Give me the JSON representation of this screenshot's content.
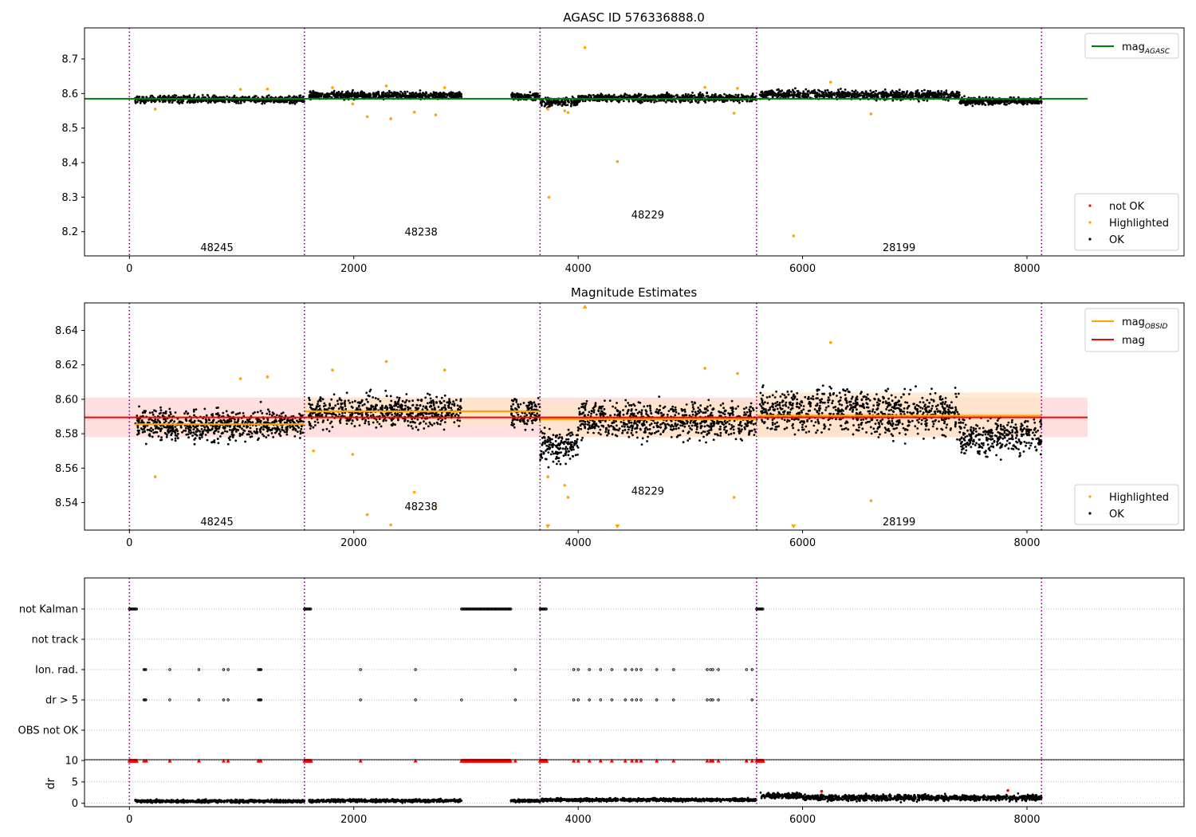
{
  "figure_title": "AGASC ID 576336888.0",
  "chart_data": [
    {
      "type": "scatter",
      "title": "AGASC ID 576336888.0",
      "xlabel": "",
      "ylabel": "",
      "xlim": [
        -400,
        9400
      ],
      "ylim": [
        8.13,
        8.79
      ],
      "xticks": [
        0,
        2000,
        4000,
        6000,
        8000
      ],
      "yticks": [
        8.2,
        8.3,
        8.4,
        8.5,
        8.6,
        8.7
      ],
      "ytick_labels": [
        "8.2",
        "8.3",
        "8.4",
        "8.5",
        "8.6",
        "8.7"
      ],
      "obsid_boundaries": [
        0,
        1560,
        3660,
        5590,
        8130
      ],
      "obsid_labels": [
        {
          "text": "48245",
          "x": 780,
          "y": 8.155
        },
        {
          "text": "48238",
          "x": 2600,
          "y": 8.2
        },
        {
          "text": "48229",
          "x": 4620,
          "y": 8.25
        },
        {
          "text": "28199",
          "x": 6860,
          "y": 8.155
        }
      ],
      "line_series": [
        {
          "name": "mag_AGASC",
          "color": "#008000",
          "y": 8.585,
          "x": [
            -400,
            8540
          ]
        }
      ],
      "legend_lines": {
        "entries": [
          {
            "base": "mag",
            "sub": "AGASC",
            "color": "#008000"
          }
        ],
        "position": "upper right"
      },
      "legend_points": {
        "entries": [
          {
            "label": "not OK",
            "color": "#ff0000"
          },
          {
            "label": "Highlighted",
            "color": "#ffa500"
          },
          {
            "label": "OK",
            "color": "#000000"
          }
        ],
        "position": "lower right"
      },
      "segments": [
        {
          "x0": 50,
          "x1": 1560,
          "base": 8.583,
          "spread": 0.009
        },
        {
          "x0": 1600,
          "x1": 2960,
          "base": 8.595,
          "spread": 0.009
        },
        {
          "x0": 3400,
          "x1": 3660,
          "base": 8.592,
          "spread": 0.009
        },
        {
          "x0": 3660,
          "x1": 4000,
          "base": 8.575,
          "spread": 0.012
        },
        {
          "x0": 4000,
          "x1": 5590,
          "base": 8.587,
          "spread": 0.01
        },
        {
          "x0": 5620,
          "x1": 6500,
          "base": 8.597,
          "spread": 0.011
        },
        {
          "x0": 6500,
          "x1": 7400,
          "base": 8.595,
          "spread": 0.012
        },
        {
          "x0": 7400,
          "x1": 8130,
          "base": 8.578,
          "spread": 0.009
        }
      ],
      "highlighted": [
        {
          "x": 230,
          "y": 8.555
        },
        {
          "x": 990,
          "y": 8.612
        },
        {
          "x": 1230,
          "y": 8.613
        },
        {
          "x": 1810,
          "y": 8.617
        },
        {
          "x": 1990,
          "y": 8.57
        },
        {
          "x": 2120,
          "y": 8.533
        },
        {
          "x": 2290,
          "y": 8.622
        },
        {
          "x": 2330,
          "y": 8.527
        },
        {
          "x": 2540,
          "y": 8.546
        },
        {
          "x": 2730,
          "y": 8.538
        },
        {
          "x": 2810,
          "y": 8.617
        },
        {
          "x": 3730,
          "y": 8.555
        },
        {
          "x": 3740,
          "y": 8.3
        },
        {
          "x": 3880,
          "y": 8.55
        },
        {
          "x": 3910,
          "y": 8.545
        },
        {
          "x": 4060,
          "y": 8.733
        },
        {
          "x": 4350,
          "y": 8.403
        },
        {
          "x": 5130,
          "y": 8.618
        },
        {
          "x": 5390,
          "y": 8.543
        },
        {
          "x": 5420,
          "y": 8.615
        },
        {
          "x": 5920,
          "y": 8.188
        },
        {
          "x": 6250,
          "y": 8.633
        },
        {
          "x": 6610,
          "y": 8.541
        }
      ]
    },
    {
      "type": "scatter",
      "title": "Magnitude Estimates",
      "xlabel": "",
      "ylabel": "",
      "xlim": [
        -400,
        9400
      ],
      "ylim": [
        8.524,
        8.656
      ],
      "xticks": [
        0,
        2000,
        4000,
        6000,
        8000
      ],
      "yticks": [
        8.54,
        8.56,
        8.58,
        8.6,
        8.62,
        8.64
      ],
      "ytick_labels": [
        "8.54",
        "8.56",
        "8.58",
        "8.60",
        "8.62",
        "8.64"
      ],
      "obsid_boundaries": [
        0,
        1560,
        3660,
        5590,
        8130
      ],
      "obsid_labels": [
        {
          "text": "48245",
          "x": 780,
          "y": 8.529
        },
        {
          "text": "48238",
          "x": 2600,
          "y": 8.538
        },
        {
          "text": "48229",
          "x": 4620,
          "y": 8.547
        },
        {
          "text": "28199",
          "x": 6860,
          "y": 8.529
        }
      ],
      "mag_line": {
        "name": "mag",
        "color": "#ff0000",
        "y": 8.5895,
        "band": [
          8.578,
          8.601
        ],
        "x": [
          -400,
          8540
        ]
      },
      "mag_obsid": [
        {
          "x0": 50,
          "x1": 1560,
          "y": 8.5855,
          "band": [
            8.58,
            8.591
          ]
        },
        {
          "x0": 1560,
          "x1": 3660,
          "y": 8.593,
          "band": [
            8.585,
            8.601
          ]
        },
        {
          "x0": 3660,
          "x1": 5590,
          "y": 8.5885,
          "band": [
            8.578,
            8.599
          ]
        },
        {
          "x0": 5590,
          "x1": 8130,
          "y": 8.5905,
          "band": [
            8.578,
            8.604
          ]
        }
      ],
      "legend_lines": {
        "entries": [
          {
            "base": "mag",
            "sub": "OBSID",
            "color": "#ffa500"
          },
          {
            "base": "mag",
            "sub": "",
            "color": "#ff0000"
          }
        ],
        "position": "upper right"
      },
      "legend_points": {
        "entries": [
          {
            "label": "Highlighted",
            "color": "#ffa500"
          },
          {
            "label": "OK",
            "color": "#000000"
          }
        ],
        "position": "lower right"
      },
      "segments": [
        {
          "x0": 50,
          "x1": 1560,
          "base": 8.585,
          "spread": 0.008
        },
        {
          "x0": 1600,
          "x1": 2960,
          "base": 8.593,
          "spread": 0.008
        },
        {
          "x0": 3400,
          "x1": 3660,
          "base": 8.592,
          "spread": 0.008
        },
        {
          "x0": 3660,
          "x1": 4000,
          "base": 8.573,
          "spread": 0.009
        },
        {
          "x0": 4000,
          "x1": 5590,
          "base": 8.588,
          "spread": 0.009
        },
        {
          "x0": 5620,
          "x1": 6500,
          "base": 8.594,
          "spread": 0.012
        },
        {
          "x0": 6500,
          "x1": 7400,
          "base": 8.592,
          "spread": 0.012
        },
        {
          "x0": 7400,
          "x1": 8130,
          "base": 8.578,
          "spread": 0.009
        }
      ],
      "highlighted": [
        {
          "x": 230,
          "y": 8.555
        },
        {
          "x": 990,
          "y": 8.612
        },
        {
          "x": 1230,
          "y": 8.613
        },
        {
          "x": 1640,
          "y": 8.57
        },
        {
          "x": 1810,
          "y": 8.617
        },
        {
          "x": 1990,
          "y": 8.568
        },
        {
          "x": 2120,
          "y": 8.533
        },
        {
          "x": 2290,
          "y": 8.622
        },
        {
          "x": 2330,
          "y": 8.527
        },
        {
          "x": 2540,
          "y": 8.546
        },
        {
          "x": 2730,
          "y": 8.538
        },
        {
          "x": 2810,
          "y": 8.617
        },
        {
          "x": 3730,
          "y": 8.555
        },
        {
          "x": 3880,
          "y": 8.55
        },
        {
          "x": 3910,
          "y": 8.543
        },
        {
          "x": 5130,
          "y": 8.618
        },
        {
          "x": 5390,
          "y": 8.543
        },
        {
          "x": 5420,
          "y": 8.615
        },
        {
          "x": 6250,
          "y": 8.633
        },
        {
          "x": 6610,
          "y": 8.541
        }
      ],
      "clipped_markers": [
        {
          "x": 3730,
          "edge": "bottom"
        },
        {
          "x": 4060,
          "edge": "top"
        },
        {
          "x": 4350,
          "edge": "bottom"
        },
        {
          "x": 5920,
          "edge": "bottom"
        }
      ]
    },
    {
      "type": "scatter",
      "title": "",
      "xlabel": "",
      "ylabel": "",
      "xlim": [
        -400,
        9400
      ],
      "rows": [
        "not Kalman",
        "not track",
        "Ion. rad.",
        "dr > 5",
        "OBS not OK"
      ],
      "obsid_boundaries": [
        0,
        1560,
        3660,
        5590,
        8130
      ],
      "flags": {
        "not Kalman": {
          "ranges": [
            [
              0,
              70
            ],
            [
              1560,
              1620
            ],
            [
              2960,
              3400
            ],
            [
              3660,
              3720
            ],
            [
              5590,
              5650
            ]
          ],
          "points": []
        },
        "not track": {
          "ranges": [],
          "points": []
        },
        "Ion. rad.": {
          "ranges": [
            [
              130,
              150
            ],
            [
              1150,
              1180
            ]
          ],
          "points": [
            360,
            620,
            840,
            880,
            2060,
            2550,
            3440,
            3960,
            4000,
            4100,
            4200,
            4300,
            4420,
            4480,
            4520,
            4560,
            4700,
            4850,
            5150,
            5180,
            5200,
            5250,
            5500,
            5550
          ]
        },
        "dr > 5": {
          "ranges": [
            [
              130,
              150
            ],
            [
              1150,
              1180
            ]
          ],
          "points": [
            360,
            620,
            840,
            880,
            2060,
            2550,
            2960,
            3440,
            3960,
            4000,
            4100,
            4200,
            4300,
            4420,
            4480,
            4520,
            4560,
            4700,
            4850,
            5150,
            5180,
            5200,
            5250,
            5550
          ]
        },
        "OBS not OK": {
          "ranges": [],
          "points": []
        }
      }
    },
    {
      "type": "scatter",
      "title": "",
      "xlabel": "",
      "ylabel": "dr",
      "xlim": [
        -400,
        9400
      ],
      "ylim": [
        -0.8,
        10.2
      ],
      "xticks": [
        0,
        2000,
        4000,
        6000,
        8000
      ],
      "yticks": [
        0,
        5,
        10
      ],
      "ytick_labels": [
        "0",
        "5",
        "10"
      ],
      "obsid_boundaries": [
        0,
        1560,
        3660,
        5590,
        8130
      ],
      "segments": [
        {
          "x0": 50,
          "x1": 1560,
          "base": 0.5,
          "spread": 0.3
        },
        {
          "x0": 1600,
          "x1": 2960,
          "base": 0.6,
          "spread": 0.3
        },
        {
          "x0": 3400,
          "x1": 3660,
          "base": 0.6,
          "spread": 0.3
        },
        {
          "x0": 3660,
          "x1": 5590,
          "base": 0.8,
          "spread": 0.3
        },
        {
          "x0": 5620,
          "x1": 6000,
          "base": 1.8,
          "spread": 0.6
        },
        {
          "x0": 6000,
          "x1": 8130,
          "base": 1.3,
          "spread": 0.6
        }
      ],
      "capped_flags": {
        "y": 10,
        "ranges": [
          [
            0,
            70
          ],
          [
            1560,
            1620
          ],
          [
            2960,
            3400
          ],
          [
            3660,
            3720
          ],
          [
            5590,
            5650
          ]
        ],
        "points": [
          130,
          150,
          360,
          620,
          840,
          880,
          1150,
          1170,
          2060,
          2550,
          3440,
          3960,
          4000,
          4100,
          4200,
          4300,
          4420,
          4480,
          4520,
          4560,
          4700,
          4850,
          5150,
          5180,
          5200,
          5250,
          5500,
          5550
        ]
      },
      "red_points": [
        {
          "x": 6170,
          "y": 2.8
        },
        {
          "x": 7830,
          "y": 3.0
        }
      ]
    }
  ],
  "colors": {
    "ok": "#000000",
    "highlighted": "#ffa500",
    "not_ok": "#ff0000",
    "obsid_boundary": "#800080",
    "agasc_line": "#008000",
    "mag_band": "#ffd9d9",
    "obsid_band": "#ffe4c4"
  }
}
